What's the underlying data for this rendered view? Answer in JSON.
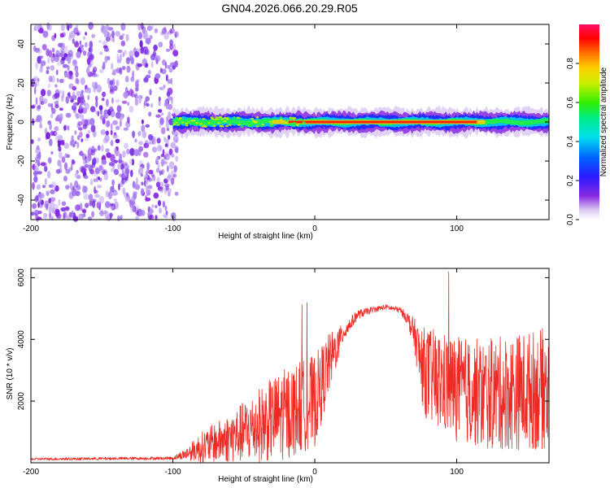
{
  "title": "GN04.2026.066.20.29.R05",
  "chart_data": [
    {
      "type": "heatmap",
      "name": "spectrogram",
      "xlabel": "Height of straight line (km)",
      "ylabel": "Frequency (Hz)",
      "xlim": [
        -200,
        165
      ],
      "ylim": [
        -50,
        50
      ],
      "xticks": [
        -200,
        -100,
        0,
        100
      ],
      "yticks": [
        -40,
        -20,
        0,
        20,
        40
      ],
      "noise_region_x": [
        -200,
        -97
      ],
      "signal_band": {
        "start_x": -100,
        "end_x": 165,
        "center_frequency": 0,
        "half_width_hz": 6,
        "peak_region_x": [
          -30,
          120
        ]
      },
      "colorbar": {
        "label": "Normalized spectral amplitude",
        "range": [
          0.0,
          1.0
        ],
        "ticks": [
          "0.0",
          "0.2",
          "0.4",
          "0.6",
          "0.8"
        ],
        "colormap": "rainbow"
      }
    },
    {
      "type": "line",
      "name": "snr",
      "xlabel": "Height of straight line (km)",
      "ylabel": "SNR (10 * v/v)",
      "xlim": [
        -200,
        165
      ],
      "ylim": [
        0,
        6300
      ],
      "xticks": [
        -200,
        -100,
        0,
        100
      ],
      "yticks": [
        2000,
        4000,
        6000
      ],
      "color": "#ee2a24",
      "envelope": {
        "x": [
          -200,
          -100,
          -90,
          -80,
          -60,
          -40,
          -20,
          0,
          10,
          20,
          30,
          40,
          50,
          60,
          65,
          70,
          75,
          80,
          100,
          120,
          140,
          165
        ],
        "base": [
          120,
          150,
          300,
          500,
          800,
          1200,
          1600,
          2000,
          3200,
          4200,
          4800,
          4950,
          5050,
          4950,
          4700,
          4200,
          3200,
          2800,
          2400,
          2200,
          2300,
          2400
        ],
        "noise": [
          40,
          50,
          200,
          500,
          800,
          1200,
          1500,
          1500,
          1000,
          300,
          150,
          100,
          80,
          100,
          200,
          500,
          1200,
          1600,
          1700,
          1800,
          1900,
          2000
        ]
      }
    }
  ]
}
